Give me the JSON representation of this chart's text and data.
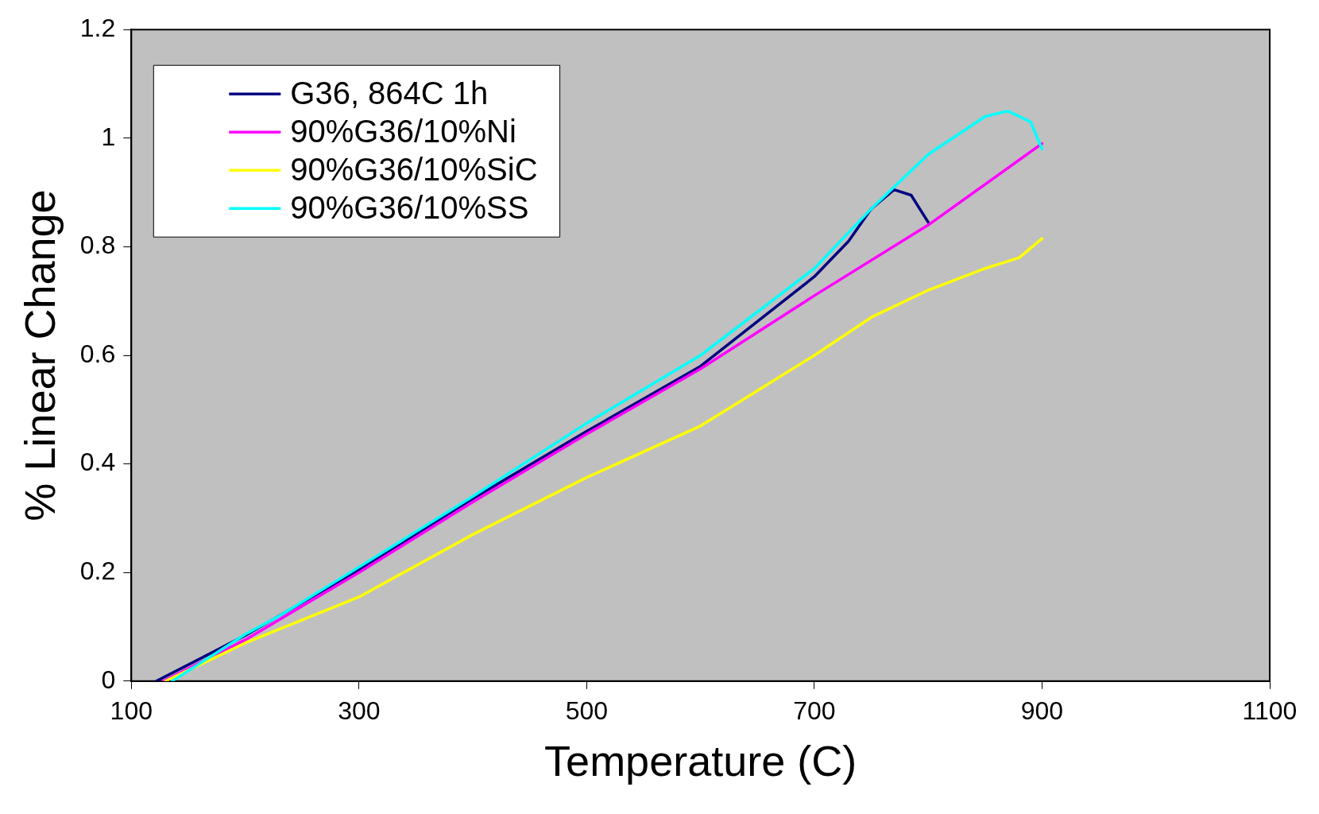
{
  "chart_data": {
    "type": "line",
    "xlabel": "Temperature (C)",
    "ylabel": "% Linear Change",
    "xlim": [
      100,
      1100
    ],
    "xticks": [
      100,
      300,
      500,
      700,
      900,
      1100
    ],
    "ylim": [
      0,
      1.2
    ],
    "yticks": [
      0,
      0.2,
      0.4,
      0.6,
      0.8,
      1,
      1.2
    ],
    "legend": "top left",
    "marker": "none",
    "line_style": "solid",
    "series": [
      {
        "name": "G36, 864C 1h",
        "color": "#000080",
        "x": [
          122,
          200,
          300,
          400,
          500,
          600,
          700,
          730,
          750,
          770,
          785,
          800
        ],
        "values": [
          0,
          0.084,
          0.205,
          0.336,
          0.46,
          0.58,
          0.745,
          0.81,
          0.87,
          0.905,
          0.895,
          0.845
        ]
      },
      {
        "name": "90%G36/10%Ni",
        "color": "#ff00ff",
        "x": [
          128,
          200,
          300,
          400,
          500,
          600,
          700,
          800,
          900
        ],
        "values": [
          0,
          0.076,
          0.2,
          0.33,
          0.455,
          0.575,
          0.71,
          0.84,
          0.99
        ]
      },
      {
        "name": "90%G36/10%SiC",
        "color": "#ffff00",
        "x": [
          130,
          200,
          300,
          400,
          500,
          600,
          700,
          750,
          800,
          850,
          880,
          900
        ],
        "values": [
          0,
          0.07,
          0.155,
          0.27,
          0.375,
          0.47,
          0.6,
          0.67,
          0.72,
          0.76,
          0.78,
          0.815
        ]
      },
      {
        "name": "90%G36/10%SS",
        "color": "#00ffff",
        "x": [
          136,
          200,
          230,
          300,
          400,
          500,
          600,
          700,
          750,
          800,
          850,
          870,
          890,
          900
        ],
        "values": [
          0,
          0.086,
          0.12,
          0.21,
          0.34,
          0.475,
          0.6,
          0.76,
          0.87,
          0.97,
          1.04,
          1.05,
          1.03,
          0.98
        ]
      }
    ]
  }
}
